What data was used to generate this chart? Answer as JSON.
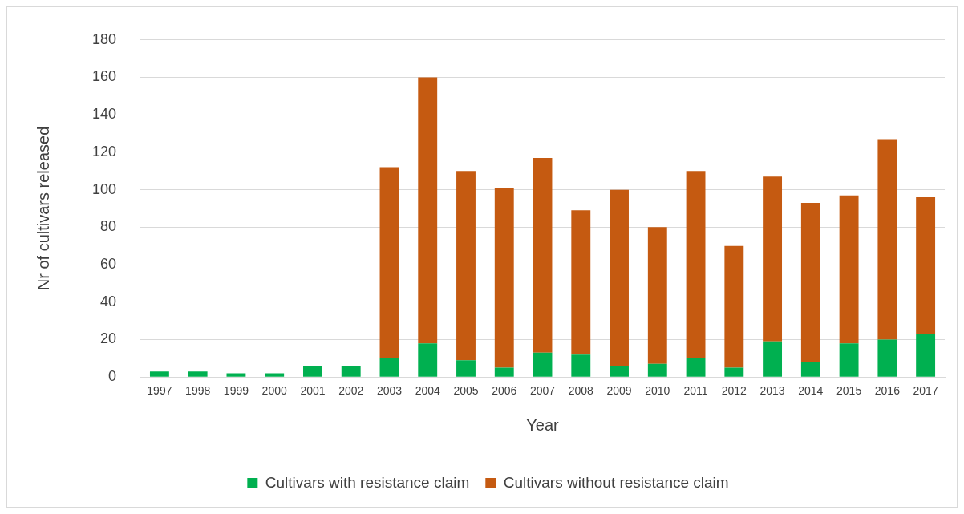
{
  "chart_data": {
    "type": "bar",
    "stacked": true,
    "xlabel": "Year",
    "ylabel": "Nr of cultivars released",
    "categories": [
      "1997",
      "1998",
      "1999",
      "2000",
      "2001",
      "2002",
      "2003",
      "2004",
      "2005",
      "2006",
      "2007",
      "2008",
      "2009",
      "2010",
      "2011",
      "2012",
      "2013",
      "2014",
      "2015",
      "2016",
      "2017"
    ],
    "series": [
      {
        "name": "Cultivars with resistance claim",
        "color": "#00b050",
        "values": [
          3,
          3,
          2,
          2,
          6,
          6,
          10,
          18,
          9,
          5,
          13,
          12,
          6,
          7,
          10,
          5,
          19,
          8,
          18,
          20,
          23
        ]
      },
      {
        "name": "Cultivars without resistance claim",
        "color": "#c55a11",
        "values": [
          0,
          0,
          0,
          0,
          0,
          0,
          102,
          142,
          101,
          96,
          104,
          77,
          94,
          73,
          100,
          65,
          88,
          85,
          79,
          107,
          73
        ]
      }
    ],
    "ylim": [
      0,
      180
    ],
    "yticks": [
      0,
      20,
      40,
      60,
      80,
      100,
      120,
      140,
      160,
      180
    ],
    "grid": "y",
    "legend": "bottom"
  }
}
